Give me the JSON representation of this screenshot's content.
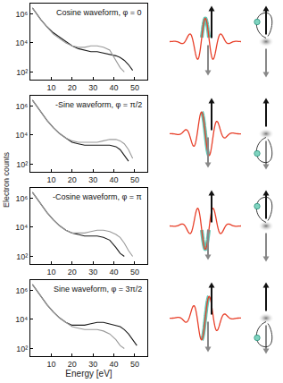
{
  "chart_data": [
    {
      "type": "line",
      "title": "Cosine waveform, φ = 0",
      "log": "y",
      "x": [
        1,
        3,
        5,
        8,
        11,
        14,
        17,
        20,
        23,
        26,
        29,
        32,
        35,
        38,
        41,
        43,
        45,
        47,
        49,
        51
      ],
      "series": [
        {
          "color": "#1a1a1a",
          "values": [
            2500000,
            1000000,
            400000,
            126000,
            50000,
            25000,
            12600,
            6300,
            4000,
            3200,
            2500,
            2500,
            2000,
            1600,
            1300,
            1000,
            630,
            320,
            130,
            null
          ]
        },
        {
          "color": "#9a9a9a",
          "values": [
            2500000,
            1000000,
            400000,
            126000,
            40000,
            20000,
            10000,
            6300,
            5000,
            5000,
            6300,
            6300,
            5000,
            3200,
            630,
            200,
            100,
            null,
            null,
            null
          ]
        }
      ],
      "xlim": [
        0,
        56
      ],
      "xticks": [
        10,
        20,
        30,
        40,
        50
      ],
      "ylim": [
        30,
        5000000
      ],
      "yticks": [
        {
          "value": 100,
          "label": "10²"
        },
        {
          "value": 10000,
          "label": "10⁴"
        },
        {
          "value": 1000000,
          "label": "10⁶"
        }
      ]
    },
    {
      "type": "line",
      "title": "-Sine waveform, φ = π/2",
      "log": "y",
      "x": [
        1,
        3,
        5,
        8,
        11,
        14,
        17,
        20,
        23,
        26,
        29,
        32,
        35,
        38,
        41,
        43,
        45,
        47,
        49,
        51
      ],
      "series": [
        {
          "color": "#1a1a1a",
          "values": [
            2500000,
            1000000,
            400000,
            100000,
            32000,
            12600,
            6300,
            3200,
            2500,
            2000,
            2000,
            2000,
            2000,
            2000,
            1600,
            1000,
            400,
            160,
            null,
            null
          ]
        },
        {
          "color": "#9a9a9a",
          "values": [
            2500000,
            1000000,
            400000,
            100000,
            32000,
            12600,
            6300,
            4000,
            3200,
            3200,
            3200,
            3200,
            4000,
            5000,
            5000,
            4000,
            2500,
            1000,
            250,
            null
          ]
        }
      ],
      "xlim": [
        0,
        56
      ],
      "xticks": [
        10,
        20,
        30,
        40,
        50
      ],
      "ylim": [
        30,
        5000000
      ],
      "yticks": [
        {
          "value": 100,
          "label": "10²"
        },
        {
          "value": 10000,
          "label": "10⁴"
        },
        {
          "value": 1000000,
          "label": "10⁶"
        }
      ]
    },
    {
      "type": "line",
      "title": "-Cosine waveform, φ = π",
      "log": "y",
      "x": [
        1,
        3,
        5,
        8,
        11,
        14,
        17,
        20,
        23,
        26,
        29,
        32,
        35,
        38,
        41,
        43,
        45,
        47,
        49,
        51
      ],
      "series": [
        {
          "color": "#1a1a1a",
          "values": [
            2500000,
            1000000,
            400000,
            100000,
            32000,
            12600,
            6300,
            4000,
            3200,
            2500,
            2500,
            2500,
            2000,
            1300,
            400,
            160,
            100,
            null,
            null,
            null
          ]
        },
        {
          "color": "#9a9a9a",
          "values": [
            2500000,
            1000000,
            400000,
            100000,
            32000,
            12600,
            6300,
            4000,
            4000,
            4000,
            5000,
            6300,
            6300,
            5000,
            3200,
            2000,
            800,
            250,
            100,
            null
          ]
        }
      ],
      "xlim": [
        0,
        56
      ],
      "xticks": [
        10,
        20,
        30,
        40,
        50
      ],
      "ylim": [
        30,
        5000000
      ],
      "yticks": [
        {
          "value": 100,
          "label": "10²"
        },
        {
          "value": 10000,
          "label": "10⁴"
        },
        {
          "value": 1000000,
          "label": "10⁶"
        }
      ]
    },
    {
      "type": "line",
      "title": "Sine waveform, φ = 3π/2",
      "log": "y",
      "xlabel": "Energy [eV]",
      "x": [
        1,
        3,
        5,
        8,
        11,
        14,
        17,
        20,
        23,
        26,
        29,
        32,
        35,
        38,
        41,
        43,
        45,
        47,
        49,
        51
      ],
      "series": [
        {
          "color": "#1a1a1a",
          "values": [
            2500000,
            1000000,
            400000,
            100000,
            32000,
            12600,
            6300,
            4000,
            4000,
            4000,
            5000,
            6300,
            6300,
            5000,
            4000,
            3200,
            2000,
            1000,
            400,
            160
          ]
        },
        {
          "color": "#9a9a9a",
          "values": [
            2500000,
            1000000,
            400000,
            100000,
            32000,
            12600,
            6300,
            3200,
            2500,
            2000,
            2000,
            2000,
            1600,
            1000,
            400,
            160,
            100,
            null,
            null,
            null
          ]
        }
      ],
      "xlim": [
        0,
        56
      ],
      "xticks": [
        10,
        20,
        30,
        40,
        50
      ],
      "ylim": [
        30,
        5000000
      ],
      "yticks": [
        {
          "value": 100,
          "label": "10²"
        },
        {
          "value": 10000,
          "label": "10⁴"
        },
        {
          "value": 1000000,
          "label": "10⁶"
        }
      ]
    }
  ],
  "ylabel": "Electron counts"
}
